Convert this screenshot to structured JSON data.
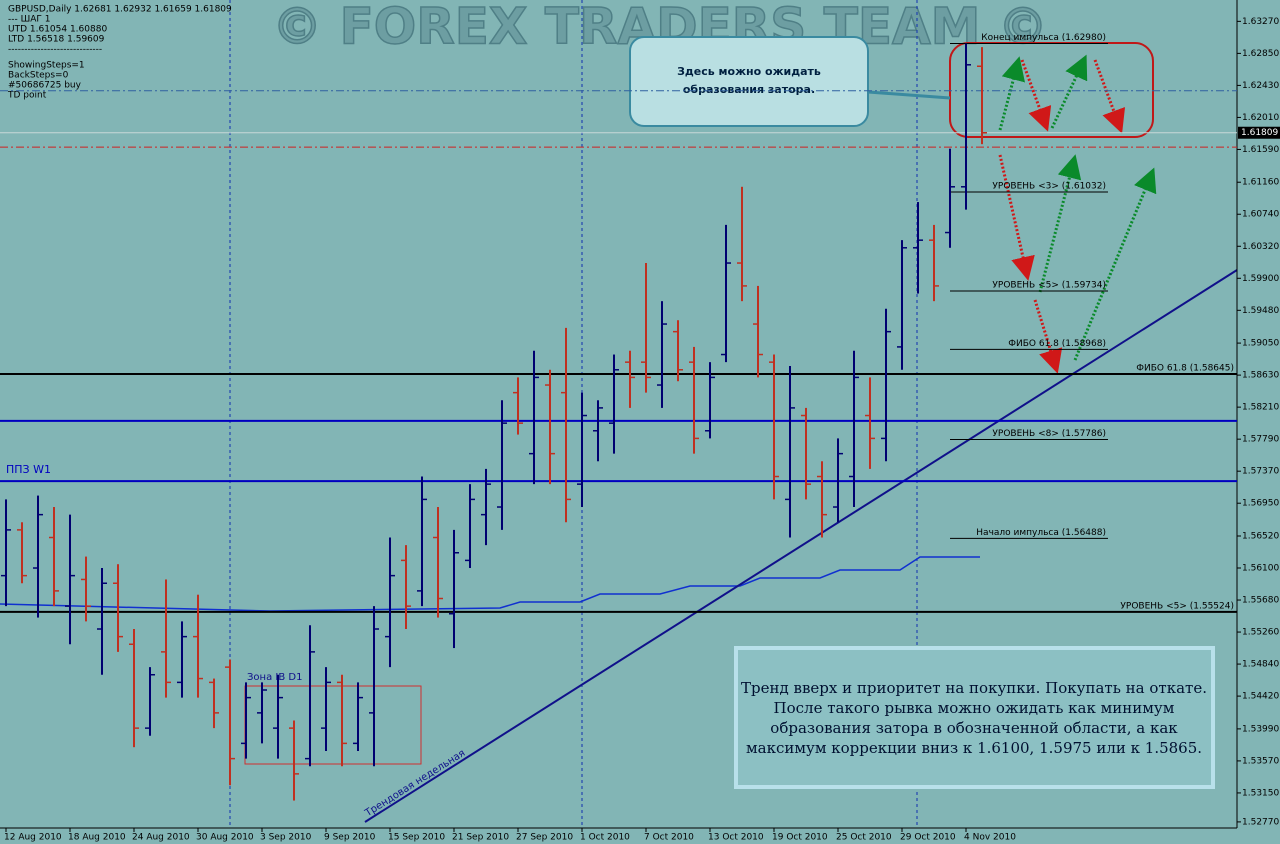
{
  "chart_data": {
    "type": "ohlc",
    "header": [
      "GBPUSD,Daily  1.62681 1.62932 1.61659 1.61809",
      "---   ШАГ 1",
      "UTD  1.61054  1.60880",
      "LTD  1.56518  1.59609",
      "-----------------------------",
      "ShowingSteps=1",
      "BackSteps=0",
      "#50686725 buy",
      "TD point"
    ],
    "watermark": "© FOREX TRADERS TEAM ©",
    "categories": [
      "12 Aug 2010",
      null,
      null,
      null,
      "18 Aug 2010",
      null,
      null,
      null,
      "24 Aug 2010",
      null,
      null,
      null,
      "30 Aug 2010",
      null,
      null,
      null,
      "3 Sep 2010",
      null,
      null,
      null,
      "9 Sep 2010",
      null,
      null,
      null,
      "15 Sep 2010",
      null,
      null,
      null,
      "21 Sep 2010",
      null,
      null,
      null,
      "27 Sep 2010",
      null,
      null,
      null,
      "1 Oct 2010",
      null,
      null,
      null,
      "7 Oct 2010",
      null,
      null,
      null,
      "13 Oct 2010",
      null,
      null,
      null,
      "19 Oct 2010",
      null,
      null,
      null,
      "25 Oct 2010",
      null,
      null,
      null,
      "29 Oct 2010",
      null,
      null,
      null,
      "4 Nov 2010",
      null
    ],
    "open": [
      1.56,
      1.566,
      1.561,
      1.565,
      1.556,
      1.5595,
      1.553,
      1.559,
      1.551,
      1.54,
      1.55,
      1.546,
      1.552,
      1.546,
      1.548,
      1.538,
      1.542,
      1.54,
      1.54,
      1.536,
      1.54,
      1.546,
      1.538,
      1.542,
      1.552,
      1.562,
      1.558,
      1.565,
      1.555,
      1.562,
      1.568,
      1.569,
      1.584,
      1.576,
      1.585,
      1.584,
      1.572,
      1.579,
      1.58,
      1.588,
      1.588,
      1.585,
      1.592,
      1.588,
      1.579,
      1.589,
      1.601,
      1.593,
      1.588,
      1.57,
      1.581,
      1.573,
      1.569,
      1.573,
      1.581,
      1.578,
      1.59,
      1.603,
      1.604,
      1.605,
      1.611,
      1.62681
    ],
    "high": [
      1.57,
      1.567,
      1.5705,
      1.569,
      1.568,
      1.5625,
      1.561,
      1.5615,
      1.553,
      1.548,
      1.5595,
      1.554,
      1.5575,
      1.5465,
      1.549,
      1.546,
      1.546,
      1.547,
      1.541,
      1.5535,
      1.548,
      1.547,
      1.546,
      1.556,
      1.565,
      1.564,
      1.573,
      1.569,
      1.566,
      1.572,
      1.574,
      1.583,
      1.586,
      1.5895,
      1.587,
      1.5925,
      1.584,
      1.583,
      1.589,
      1.5895,
      1.601,
      1.596,
      1.5935,
      1.59,
      1.588,
      1.606,
      1.611,
      1.598,
      1.589,
      1.5875,
      1.582,
      1.575,
      1.578,
      1.5895,
      1.586,
      1.595,
      1.604,
      1.609,
      1.606,
      1.616,
      1.6298,
      1.62932
    ],
    "low": [
      1.556,
      1.559,
      1.5545,
      1.556,
      1.551,
      1.554,
      1.547,
      1.55,
      1.5375,
      1.539,
      1.544,
      1.544,
      1.544,
      1.54,
      1.5325,
      1.536,
      1.538,
      1.536,
      1.5305,
      1.535,
      1.537,
      1.535,
      1.537,
      1.535,
      1.548,
      1.553,
      1.556,
      1.5545,
      1.5505,
      1.561,
      1.564,
      1.566,
      1.5785,
      1.572,
      1.572,
      1.567,
      1.569,
      1.575,
      1.576,
      1.582,
      1.584,
      1.582,
      1.5855,
      1.576,
      1.578,
      1.588,
      1.596,
      1.586,
      1.57,
      1.565,
      1.57,
      1.565,
      1.567,
      1.569,
      1.574,
      1.575,
      1.587,
      1.597,
      1.596,
      1.603,
      1.608,
      1.61659
    ],
    "close": [
      1.566,
      1.56,
      1.568,
      1.558,
      1.56,
      1.556,
      1.559,
      1.552,
      1.54,
      1.547,
      1.546,
      1.552,
      1.5465,
      1.542,
      1.536,
      1.544,
      1.545,
      1.544,
      1.534,
      1.55,
      1.546,
      1.538,
      1.544,
      1.553,
      1.56,
      1.556,
      1.57,
      1.557,
      1.563,
      1.57,
      1.572,
      1.58,
      1.58,
      1.586,
      1.576,
      1.57,
      1.581,
      1.582,
      1.587,
      1.586,
      1.586,
      1.593,
      1.587,
      1.578,
      1.586,
      1.601,
      1.598,
      1.589,
      1.573,
      1.582,
      1.572,
      1.568,
      1.576,
      1.586,
      1.578,
      1.592,
      1.603,
      1.604,
      1.598,
      1.611,
      1.627,
      1.61809
    ],
    "up_color": "#000070",
    "down_color": "#c03020",
    "ylim": [
      1.5269,
      1.6355
    ],
    "yticks": [
      {
        "value": 1.6327,
        "label": "1.63270"
      },
      {
        "value": 1.6285,
        "label": "1.62850"
      },
      {
        "value": 1.6243,
        "label": "1.62430"
      },
      {
        "value": 1.6201,
        "label": "1.62010"
      },
      {
        "value": 1.6159,
        "label": "1.61590"
      },
      {
        "value": 1.6116,
        "label": "1.61160"
      },
      {
        "value": 1.6074,
        "label": "1.60740"
      },
      {
        "value": 1.6032,
        "label": "1.60320"
      },
      {
        "value": 1.599,
        "label": "1.59900"
      },
      {
        "value": 1.5948,
        "label": "1.59480"
      },
      {
        "value": 1.5905,
        "label": "1.59050"
      },
      {
        "value": 1.5863,
        "label": "1.58630"
      },
      {
        "value": 1.5821,
        "label": "1.58210"
      },
      {
        "value": 1.5779,
        "label": "1.57790"
      },
      {
        "value": 1.5737,
        "label": "1.57370"
      },
      {
        "value": 1.5695,
        "label": "1.56950"
      },
      {
        "value": 1.5652,
        "label": "1.56520"
      },
      {
        "value": 1.561,
        "label": "1.56100"
      },
      {
        "value": 1.5568,
        "label": "1.55680"
      },
      {
        "value": 1.5526,
        "label": "1.55260"
      },
      {
        "value": 1.5484,
        "label": "1.54840"
      },
      {
        "value": 1.5442,
        "label": "1.54420"
      },
      {
        "value": 1.5399,
        "label": "1.53990"
      },
      {
        "value": 1.5357,
        "label": "1.53570"
      },
      {
        "value": 1.5315,
        "label": "1.53150"
      },
      {
        "value": 1.5277,
        "label": "1.52770"
      }
    ],
    "levels": [
      {
        "value": 1.58645,
        "label": "ФИБО 61.8 (1.58645)",
        "color": "#000000",
        "style": "solid"
      },
      {
        "value": 1.55524,
        "label": "УРОВЕНЬ <5>    (1.55524)",
        "color": "#000000",
        "style": "solid"
      },
      {
        "value": 1.5803,
        "color": "#0000c0",
        "style": "solid"
      },
      {
        "value": 1.6162,
        "color": "#d02020",
        "style": "dashdot"
      },
      {
        "value": 1.6236,
        "color": "#3060a0",
        "style": "dashdot"
      }
    ],
    "zone_line": {
      "value": 1.5724,
      "label": "ППЗ W1",
      "color": "#0000c0"
    },
    "short_levels": [
      {
        "value": 1.6298,
        "label": "Конец импульса    (1.62980)"
      },
      {
        "value": 1.61032,
        "label": "УРОВЕНЬ <3>    (1.61032)"
      },
      {
        "value": 1.59734,
        "label": "УРОВЕНЬ <5>    (1.59734)"
      },
      {
        "value": 1.58968,
        "label": "ФИБО 61.8 (1.58968)"
      },
      {
        "value": 1.57786,
        "label": "УРОВЕНЬ <8>    (1.57786)"
      },
      {
        "value": 1.56488,
        "label": "Начало импульса    (1.56488)"
      }
    ],
    "annotations": {
      "callout": [
        "Здесь можно ожидать",
        "образования затора."
      ],
      "summary": [
        "Тренд вверх и приоритет на покупки. Покупать на откате.",
        "После такого рывка можно ожидать как минимум",
        "образования затора в обозначенной области,  а как",
        "максимум коррекции вниз к 1.6100, 1.5975 или к 1.5865."
      ],
      "zone": "Зона IB D1",
      "trendline": "Трендовая недельная"
    }
  }
}
